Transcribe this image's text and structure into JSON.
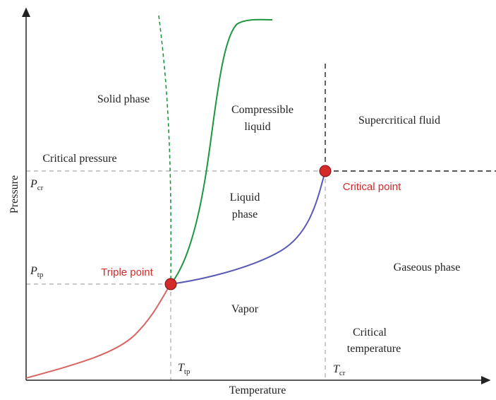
{
  "axes": {
    "x_label": "Temperature",
    "y_label": "Pressure"
  },
  "regions": {
    "solid": [
      "Solid phase"
    ],
    "compressible_liquid": [
      "Compressible",
      "liquid"
    ],
    "supercritical": [
      "Supercritical fluid"
    ],
    "liquid": [
      "Liquid",
      "phase"
    ],
    "gaseous": [
      "Gaseous phase"
    ],
    "vapor": [
      "Vapor"
    ]
  },
  "points": {
    "triple": "Triple point",
    "critical": "Critical point"
  },
  "annotations": {
    "critical_pressure": "Critical pressure",
    "critical_temperature": [
      "Critical",
      "temperature"
    ]
  },
  "markers": {
    "P_cr": {
      "symbol": "P",
      "subscript": "cr"
    },
    "P_tp": {
      "symbol": "P",
      "subscript": "tp"
    },
    "T_tp": {
      "symbol": "T",
      "subscript": "tp"
    },
    "T_cr": {
      "symbol": "T",
      "subscript": "cr"
    }
  }
}
